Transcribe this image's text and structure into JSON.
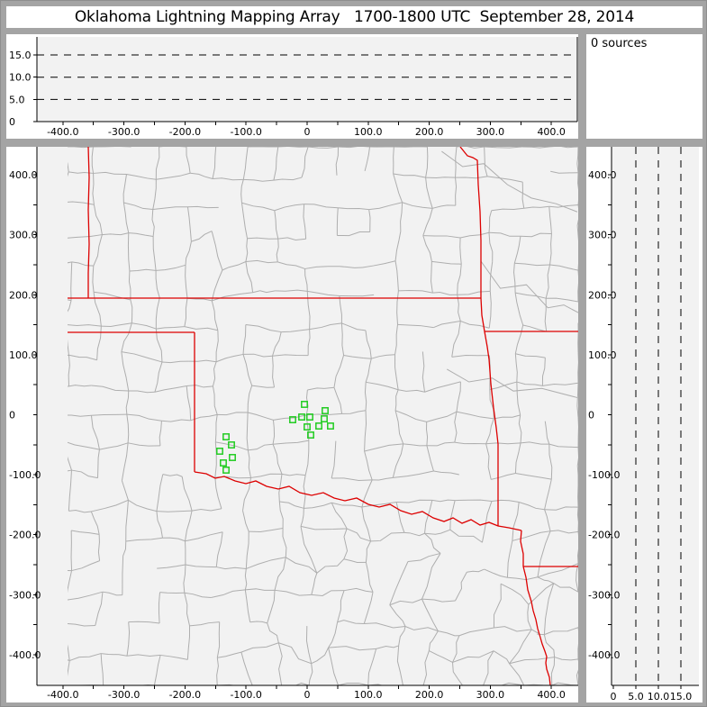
{
  "window": {
    "title": "Oklahoma Lightning Mapping Array   1700-1800 UTC  September 28, 2014"
  },
  "sources_panel": {
    "label": "0 sources"
  },
  "colors": {
    "frame": "#a4a4a4",
    "panel_bg": "#ffffff",
    "plot_bg": "#f2f2f2",
    "county_line": "#aeaeae",
    "state_border": "#dd0000",
    "station": "#22cc22",
    "axis": "#000000",
    "dashed_line": "#000000",
    "title_text": "#000000"
  },
  "map_panel": {
    "x_tick_values": [
      -400,
      -300,
      -200,
      -100,
      0,
      100,
      200,
      300,
      400
    ],
    "x_tick_labels": [
      "-400.0",
      "-300.0",
      "-200.0",
      "-100.0",
      "0",
      "100.0",
      "200.0",
      "300.0",
      "400.0"
    ],
    "y_tick_values": [
      400,
      300,
      200,
      100,
      0,
      -100,
      -200,
      -300,
      -400
    ],
    "y_tick_labels": [
      "400.0",
      "300.0",
      "200.0",
      "100.0",
      "0",
      "-100.0",
      "-200.0",
      "-300.0",
      "-400.0"
    ],
    "minor_tick_step_km": 50
  },
  "altitude_axis": {
    "tick_values": [
      0,
      5,
      10,
      15
    ],
    "tick_labels": [
      "0",
      "5.0",
      "10.0",
      "15.0"
    ],
    "dashed_levels": [
      5,
      10,
      15
    ]
  },
  "stations": [
    {
      "x_km": -4.4,
      "y_km": 17.3
    },
    {
      "x_km": 29.5,
      "y_km": 6.8
    },
    {
      "x_km": -8.8,
      "y_km": -3.8
    },
    {
      "x_km": 4.4,
      "y_km": -3.8
    },
    {
      "x_km": -23.6,
      "y_km": -8.3
    },
    {
      "x_km": 28.0,
      "y_km": -6.8
    },
    {
      "x_km": 0.0,
      "y_km": -20.3
    },
    {
      "x_km": 19.2,
      "y_km": -18.8
    },
    {
      "x_km": 38.3,
      "y_km": -18.8
    },
    {
      "x_km": 5.9,
      "y_km": -33.8
    },
    {
      "x_km": -132.7,
      "y_km": -36.8
    },
    {
      "x_km": -123.9,
      "y_km": -50.3
    },
    {
      "x_km": -143.1,
      "y_km": -60.8
    },
    {
      "x_km": -122.4,
      "y_km": -71.3
    },
    {
      "x_km": -137.2,
      "y_km": -80.3
    },
    {
      "x_km": -132.7,
      "y_km": -92.3
    }
  ],
  "chart_data": [
    {
      "type": "scatter",
      "panel": "altitude-vs-east-west-distance",
      "title": "",
      "x_ticks": [
        -400,
        -300,
        -200,
        -100,
        0,
        100,
        200,
        300,
        400
      ],
      "y_ticks": [
        0,
        5,
        10,
        15
      ],
      "xlim": [
        -450,
        450
      ],
      "ylim": [
        0,
        20
      ],
      "dashed_gridlines_y": [
        5,
        10,
        15
      ],
      "points": [],
      "note": "empty - 0 lightning sources in period"
    },
    {
      "type": "scatter",
      "panel": "plan-view-map",
      "x_ticks": [
        -400,
        -300,
        -200,
        -100,
        0,
        100,
        200,
        300,
        400
      ],
      "y_ticks": [
        400,
        300,
        200,
        100,
        0,
        -100,
        -200,
        -300,
        -400
      ],
      "xlim": [
        -450,
        450
      ],
      "ylim": [
        -450,
        450
      ],
      "grid": false,
      "map_layers": [
        "county boundaries (gray)",
        "state boundaries (red)",
        "LMA station markers (green open squares)"
      ],
      "station_count": 16,
      "lightning_points": []
    },
    {
      "type": "scatter",
      "panel": "altitude-vs-north-south-distance",
      "x_ticks": [
        0,
        5,
        10,
        15
      ],
      "y_ticks": [
        400,
        300,
        200,
        100,
        0,
        -100,
        -200,
        -300,
        -400
      ],
      "xlim": [
        0,
        20
      ],
      "ylim": [
        -450,
        450
      ],
      "dashed_gridlines_x": [
        5,
        10,
        15
      ],
      "points": [],
      "note": "empty - 0 lightning sources in period"
    }
  ]
}
